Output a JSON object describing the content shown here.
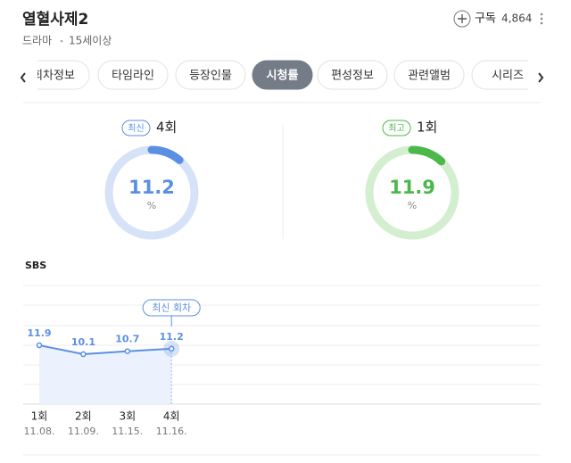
{
  "header": {
    "title": "열혈사제2",
    "genre": "드라마",
    "rating": "15세이상",
    "subscribe": "구독",
    "subscribers": "4,864"
  },
  "tabs": [
    "회차정보",
    "타임라인",
    "등장인물",
    "시청률",
    "편성정보",
    "관련앨범",
    "시리즈"
  ],
  "active_tab": 3,
  "gauges": [
    {
      "badge": "최신",
      "episode": "4회",
      "value": 11.2,
      "unit": "%",
      "color": "#5b8fe3",
      "track": "#d6e2f7"
    },
    {
      "badge": "최고",
      "episode": "1회",
      "value": 11.9,
      "unit": "%",
      "color": "#4cb84c",
      "track": "#d3efcf"
    }
  ],
  "chart_data": {
    "type": "line",
    "subtitle": "SBS",
    "categories": [
      "1회",
      "2회",
      "3회",
      "4회"
    ],
    "dates": [
      "11.08.",
      "11.09.",
      "11.15.",
      "11.16."
    ],
    "values": [
      11.9,
      10.1,
      10.7,
      11.2
    ],
    "color": "#5b8fe3",
    "fill": "#e6effc",
    "ylim": [
      0,
      24
    ],
    "callout": "최신 회차"
  }
}
